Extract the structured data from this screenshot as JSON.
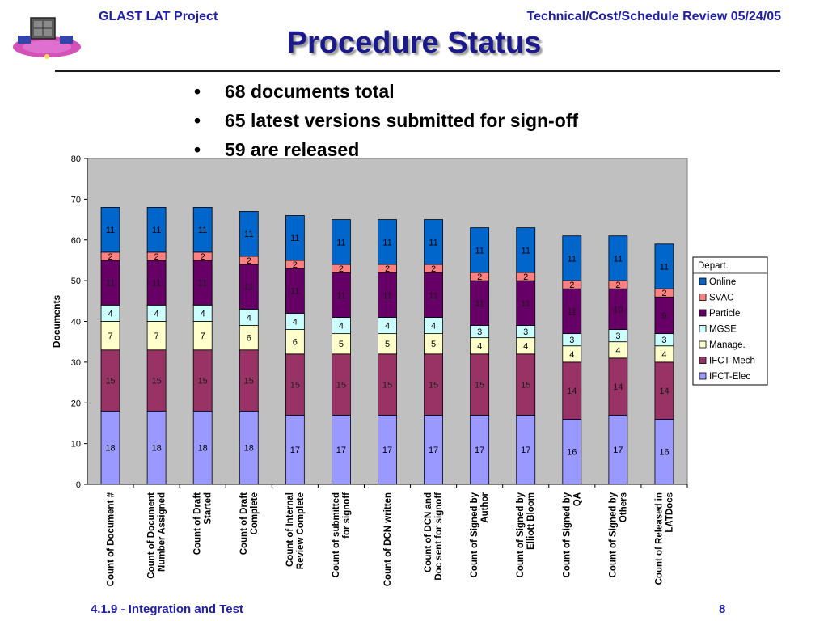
{
  "header": {
    "left": "GLAST LAT Project",
    "right": "Technical/Cost/Schedule Review 05/24/05"
  },
  "title": "Procedure Status",
  "bullets": [
    "68 documents total",
    "65 latest versions submitted for sign-off",
    "59 are released"
  ],
  "footer": {
    "left": "4.1.9 - Integration and Test",
    "page": "8"
  },
  "logo": {
    "icon": "glast-satellite-logo"
  },
  "chart_data": {
    "type": "bar",
    "stacked": true,
    "ylabel": "Documents",
    "xlabel": "",
    "ylim": [
      0,
      80
    ],
    "yticks": [
      0,
      10,
      20,
      30,
      40,
      50,
      60,
      70,
      80
    ],
    "grid": false,
    "plot_background": "#c0c0c0",
    "legend": {
      "title": "Depart.",
      "placement": "right"
    },
    "categories": [
      [
        "Count of Document #"
      ],
      [
        "Count of Document",
        "Number Assigned"
      ],
      [
        "Count of Draft",
        "Started"
      ],
      [
        "Count of Draft",
        "Complete"
      ],
      [
        "Count of Internal",
        "Review Complete"
      ],
      [
        "Count of submitted",
        "for signoff"
      ],
      [
        "Count of DCN written"
      ],
      [
        "Count of DCN and",
        "Doc sent for signoff"
      ],
      [
        "Count of Signed by",
        "Author"
      ],
      [
        "Count of Signed by",
        "Elliott Bloom"
      ],
      [
        "Count of Signed by",
        "QA"
      ],
      [
        "Count of Signed by",
        "Others"
      ],
      [
        "Count of Released in",
        "LATDocs"
      ]
    ],
    "series": [
      {
        "name": "IFCT-Elec",
        "color": "#9999ff",
        "values": [
          18,
          18,
          18,
          18,
          17,
          17,
          17,
          17,
          17,
          17,
          16,
          17,
          16
        ]
      },
      {
        "name": "IFCT-Mech",
        "color": "#993366",
        "values": [
          15,
          15,
          15,
          15,
          15,
          15,
          15,
          15,
          15,
          15,
          14,
          14,
          14
        ]
      },
      {
        "name": "Manage.",
        "color": "#ffffcc",
        "values": [
          7,
          7,
          7,
          6,
          6,
          5,
          5,
          5,
          4,
          4,
          4,
          4,
          4
        ]
      },
      {
        "name": "MGSE",
        "color": "#ccffff",
        "values": [
          4,
          4,
          4,
          4,
          4,
          4,
          4,
          4,
          3,
          3,
          3,
          3,
          3
        ]
      },
      {
        "name": "Particle",
        "color": "#660066",
        "values": [
          11,
          11,
          11,
          11,
          11,
          11,
          11,
          11,
          11,
          11,
          11,
          10,
          9
        ]
      },
      {
        "name": "SVAC",
        "color": "#ff8080",
        "values": [
          2,
          2,
          2,
          2,
          2,
          2,
          2,
          2,
          2,
          2,
          2,
          2,
          2
        ]
      },
      {
        "name": "Online",
        "color": "#0066cc",
        "values": [
          11,
          11,
          11,
          11,
          11,
          11,
          11,
          11,
          11,
          11,
          11,
          11,
          11
        ]
      }
    ]
  }
}
